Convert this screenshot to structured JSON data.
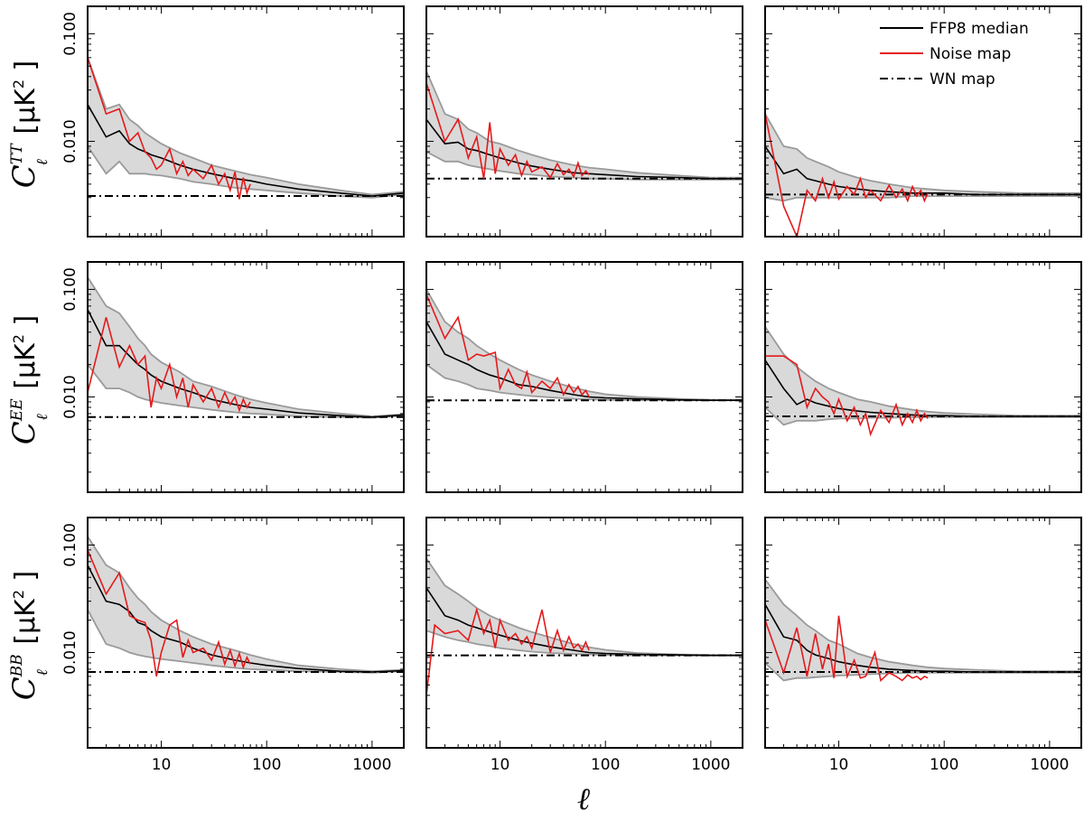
{
  "figure": {
    "xlabel": "ℓ",
    "y_unit": "μK",
    "y_unit_power": "2",
    "row_labels": [
      {
        "base": "C",
        "sup": "TT",
        "sub": "ℓ"
      },
      {
        "base": "C",
        "sup": "EE",
        "sub": "ℓ"
      },
      {
        "base": "C",
        "sup": "BB",
        "sub": "ℓ"
      }
    ],
    "x_tick_labels": [
      "10",
      "100",
      "1000"
    ],
    "y_tick_labels": [
      "0.010",
      "0.100"
    ],
    "legend": {
      "placement": "top-right",
      "entries": [
        {
          "label": "FFP8 median",
          "color": "#000000",
          "style": "solid"
        },
        {
          "label": "Noise map",
          "color": "#e41a1c",
          "style": "solid"
        },
        {
          "label": "WN map",
          "color": "#000000",
          "style": "dashdot"
        }
      ]
    },
    "colors": {
      "band_fill": "#d9d9d9",
      "band_edge": "#9a9a9a",
      "median": "#000000",
      "noise": "#e41a1c",
      "wn": "#000000"
    }
  },
  "chart_data": [
    {
      "type": "line",
      "row": 1,
      "col": 1,
      "xscale": "log",
      "yscale": "log",
      "xlim": [
        2,
        2000
      ],
      "ylim": [
        0.0013,
        0.18
      ],
      "wn_level": 0.0031,
      "x": [
        2,
        3,
        4,
        5,
        6,
        7,
        8,
        10,
        15,
        20,
        30,
        50,
        70,
        100,
        200,
        500,
        1000,
        2000
      ],
      "median": [
        0.022,
        0.011,
        0.0125,
        0.0095,
        0.0085,
        0.008,
        0.0075,
        0.007,
        0.006,
        0.0055,
        0.005,
        0.0045,
        0.0043,
        0.004,
        0.0036,
        0.0033,
        0.0031,
        0.0033
      ],
      "band_upper": [
        0.06,
        0.02,
        0.022,
        0.016,
        0.014,
        0.012,
        0.011,
        0.0095,
        0.0078,
        0.007,
        0.006,
        0.0053,
        0.0049,
        0.0046,
        0.004,
        0.0035,
        0.0032,
        0.0034
      ],
      "band_lower": [
        0.009,
        0.005,
        0.0065,
        0.005,
        0.005,
        0.005,
        0.0049,
        0.0048,
        0.0045,
        0.0042,
        0.004,
        0.0037,
        0.0036,
        0.0035,
        0.0033,
        0.0031,
        0.003,
        0.0032
      ],
      "noise_x": [
        2,
        3,
        4,
        5,
        6,
        7,
        8,
        9,
        10,
        12,
        14,
        16,
        18,
        20,
        25,
        30,
        35,
        40,
        45,
        50,
        55,
        60,
        65,
        70
      ],
      "noise": [
        0.06,
        0.018,
        0.02,
        0.01,
        0.012,
        0.008,
        0.007,
        0.0055,
        0.006,
        0.0085,
        0.005,
        0.0065,
        0.0048,
        0.0055,
        0.0045,
        0.006,
        0.004,
        0.005,
        0.0035,
        0.0052,
        0.0029,
        0.0046,
        0.0033,
        0.004
      ]
    },
    {
      "type": "line",
      "row": 1,
      "col": 2,
      "xscale": "log",
      "yscale": "log",
      "xlim": [
        2,
        2000
      ],
      "ylim": [
        0.0013,
        0.18
      ],
      "wn_level": 0.0045,
      "x": [
        2,
        3,
        4,
        5,
        6,
        8,
        10,
        15,
        20,
        30,
        50,
        70,
        100,
        200,
        500,
        1000,
        2000
      ],
      "median": [
        0.016,
        0.0095,
        0.0098,
        0.0085,
        0.0082,
        0.0075,
        0.007,
        0.0063,
        0.0059,
        0.0055,
        0.0051,
        0.005,
        0.0049,
        0.0047,
        0.0046,
        0.0045,
        0.0045
      ],
      "band_upper": [
        0.045,
        0.018,
        0.016,
        0.013,
        0.012,
        0.01,
        0.0095,
        0.0082,
        0.0075,
        0.0067,
        0.006,
        0.0057,
        0.0055,
        0.0051,
        0.0048,
        0.0046,
        0.0046
      ],
      "band_lower": [
        0.008,
        0.0065,
        0.0065,
        0.006,
        0.0058,
        0.0055,
        0.0053,
        0.005,
        0.0049,
        0.0047,
        0.0046,
        0.0045,
        0.0045,
        0.0044,
        0.0044,
        0.0044,
        0.0044
      ],
      "noise_x": [
        2,
        3,
        4,
        5,
        6,
        7,
        8,
        9,
        10,
        12,
        14,
        16,
        18,
        20,
        25,
        30,
        35,
        40,
        45,
        50,
        55,
        60,
        65,
        70
      ],
      "noise": [
        0.035,
        0.01,
        0.016,
        0.007,
        0.011,
        0.0045,
        0.015,
        0.005,
        0.0085,
        0.006,
        0.0075,
        0.0048,
        0.0065,
        0.0052,
        0.0058,
        0.0046,
        0.0062,
        0.0049,
        0.0055,
        0.0047,
        0.0063,
        0.0048,
        0.0053,
        0.0049
      ]
    },
    {
      "type": "line",
      "row": 1,
      "col": 3,
      "xscale": "log",
      "yscale": "log",
      "xlim": [
        2,
        2000
      ],
      "ylim": [
        0.0013,
        0.18
      ],
      "wn_level": 0.0032,
      "x": [
        2,
        3,
        4,
        5,
        6,
        8,
        10,
        15,
        20,
        30,
        50,
        70,
        100,
        200,
        500,
        1000,
        2000
      ],
      "median": [
        0.009,
        0.005,
        0.0055,
        0.0045,
        0.0043,
        0.004,
        0.0038,
        0.0036,
        0.0035,
        0.0034,
        0.0033,
        0.0033,
        0.0033,
        0.0032,
        0.0032,
        0.0032,
        0.0032
      ],
      "band_upper": [
        0.018,
        0.009,
        0.0085,
        0.007,
        0.0065,
        0.0058,
        0.0052,
        0.0046,
        0.0043,
        0.004,
        0.0037,
        0.0036,
        0.0035,
        0.0034,
        0.0033,
        0.0033,
        0.0033
      ],
      "band_lower": [
        0.003,
        0.0028,
        0.003,
        0.003,
        0.003,
        0.003,
        0.003,
        0.003,
        0.003,
        0.003,
        0.0031,
        0.0031,
        0.0031,
        0.0031,
        0.0031,
        0.0031,
        0.0031
      ],
      "noise_x": [
        2,
        3,
        4,
        5,
        6,
        7,
        8,
        9,
        10,
        12,
        14,
        16,
        18,
        20,
        25,
        30,
        35,
        40,
        45,
        50,
        55,
        60,
        65,
        70
      ],
      "noise": [
        0.018,
        0.0025,
        0.0013,
        0.0035,
        0.0028,
        0.0045,
        0.003,
        0.0042,
        0.0029,
        0.0038,
        0.0032,
        0.0045,
        0.003,
        0.0035,
        0.0028,
        0.0039,
        0.003,
        0.0036,
        0.0028,
        0.0038,
        0.0031,
        0.0035,
        0.0028,
        0.0033
      ]
    },
    {
      "type": "line",
      "row": 2,
      "col": 1,
      "xscale": "log",
      "yscale": "log",
      "xlim": [
        2,
        2000
      ],
      "ylim": [
        0.0013,
        0.18
      ],
      "wn_level": 0.0065,
      "x": [
        2,
        3,
        4,
        5,
        6,
        7,
        8,
        10,
        15,
        20,
        30,
        50,
        70,
        100,
        200,
        500,
        1000,
        2000
      ],
      "median": [
        0.065,
        0.03,
        0.03,
        0.024,
        0.02,
        0.018,
        0.016,
        0.014,
        0.012,
        0.011,
        0.0095,
        0.0085,
        0.008,
        0.0077,
        0.0071,
        0.0067,
        0.0065,
        0.0068
      ],
      "band_upper": [
        0.13,
        0.07,
        0.06,
        0.045,
        0.035,
        0.03,
        0.025,
        0.021,
        0.017,
        0.014,
        0.0125,
        0.0105,
        0.0095,
        0.0088,
        0.0077,
        0.007,
        0.0066,
        0.0069
      ],
      "band_lower": [
        0.02,
        0.012,
        0.012,
        0.011,
        0.01,
        0.0095,
        0.0092,
        0.0088,
        0.0083,
        0.008,
        0.0076,
        0.0072,
        0.007,
        0.0069,
        0.0066,
        0.0065,
        0.0064,
        0.0067
      ],
      "noise_x": [
        2,
        3,
        4,
        5,
        6,
        7,
        8,
        9,
        10,
        12,
        14,
        16,
        18,
        20,
        25,
        30,
        35,
        40,
        45,
        50,
        55,
        60,
        65,
        70
      ],
      "noise": [
        0.011,
        0.055,
        0.019,
        0.03,
        0.02,
        0.024,
        0.008,
        0.015,
        0.012,
        0.02,
        0.01,
        0.015,
        0.008,
        0.013,
        0.009,
        0.012,
        0.008,
        0.011,
        0.0085,
        0.01,
        0.0075,
        0.0095,
        0.008,
        0.009
      ]
    },
    {
      "type": "line",
      "row": 2,
      "col": 2,
      "xscale": "log",
      "yscale": "log",
      "xlim": [
        2,
        2000
      ],
      "ylim": [
        0.0013,
        0.18
      ],
      "wn_level": 0.0093,
      "x": [
        2,
        3,
        4,
        5,
        6,
        8,
        10,
        15,
        20,
        30,
        50,
        70,
        100,
        200,
        500,
        1000,
        2000
      ],
      "median": [
        0.05,
        0.025,
        0.022,
        0.02,
        0.018,
        0.016,
        0.015,
        0.013,
        0.0125,
        0.0115,
        0.0105,
        0.01,
        0.0098,
        0.0096,
        0.0094,
        0.0093,
        0.0093
      ],
      "band_upper": [
        0.1,
        0.05,
        0.04,
        0.035,
        0.03,
        0.025,
        0.022,
        0.018,
        0.016,
        0.014,
        0.0122,
        0.0113,
        0.0106,
        0.01,
        0.0096,
        0.0094,
        0.0094
      ],
      "band_lower": [
        0.02,
        0.015,
        0.014,
        0.013,
        0.012,
        0.0115,
        0.011,
        0.0105,
        0.0102,
        0.0099,
        0.0096,
        0.0095,
        0.0094,
        0.0093,
        0.0093,
        0.0093,
        0.0093
      ],
      "noise_x": [
        2,
        3,
        4,
        5,
        6,
        7,
        8,
        9,
        10,
        12,
        14,
        16,
        18,
        20,
        25,
        30,
        35,
        40,
        45,
        50,
        55,
        60,
        65,
        70
      ],
      "noise": [
        0.09,
        0.035,
        0.055,
        0.022,
        0.025,
        0.024,
        0.025,
        0.026,
        0.012,
        0.018,
        0.013,
        0.012,
        0.017,
        0.011,
        0.014,
        0.012,
        0.015,
        0.0105,
        0.013,
        0.011,
        0.0125,
        0.0105,
        0.0115,
        0.01
      ]
    },
    {
      "type": "line",
      "row": 2,
      "col": 3,
      "xscale": "log",
      "yscale": "log",
      "xlim": [
        2,
        2000
      ],
      "ylim": [
        0.0013,
        0.18
      ],
      "wn_level": 0.0066,
      "x": [
        2,
        3,
        4,
        5,
        6,
        8,
        10,
        15,
        20,
        30,
        50,
        70,
        100,
        200,
        500,
        1000,
        2000
      ],
      "median": [
        0.022,
        0.012,
        0.0085,
        0.0095,
        0.0088,
        0.0082,
        0.0078,
        0.0074,
        0.0072,
        0.007,
        0.0068,
        0.0067,
        0.0067,
        0.0066,
        0.0066,
        0.0066,
        0.0066
      ],
      "band_upper": [
        0.045,
        0.025,
        0.019,
        0.016,
        0.014,
        0.012,
        0.011,
        0.0095,
        0.009,
        0.0082,
        0.0076,
        0.0073,
        0.0071,
        0.0069,
        0.0067,
        0.0067,
        0.0067
      ],
      "band_lower": [
        0.008,
        0.0055,
        0.006,
        0.006,
        0.006,
        0.0062,
        0.0063,
        0.0063,
        0.0064,
        0.0064,
        0.0065,
        0.0065,
        0.0065,
        0.0065,
        0.0065,
        0.0065,
        0.0065
      ],
      "noise_x": [
        2,
        3,
        4,
        5,
        6,
        7,
        8,
        9,
        10,
        12,
        14,
        16,
        18,
        20,
        25,
        30,
        35,
        40,
        45,
        50,
        55,
        60,
        65,
        70
      ],
      "noise": [
        0.024,
        0.024,
        0.02,
        0.008,
        0.012,
        0.01,
        0.009,
        0.007,
        0.0095,
        0.006,
        0.008,
        0.0055,
        0.007,
        0.0045,
        0.0075,
        0.0058,
        0.0085,
        0.0055,
        0.007,
        0.0058,
        0.0075,
        0.006,
        0.007,
        0.0063
      ]
    },
    {
      "type": "line",
      "row": 3,
      "col": 1,
      "xscale": "log",
      "yscale": "log",
      "xlim": [
        2,
        2000
      ],
      "ylim": [
        0.0013,
        0.18
      ],
      "wn_level": 0.0066,
      "x": [
        2,
        3,
        4,
        5,
        6,
        7,
        8,
        10,
        15,
        20,
        30,
        50,
        70,
        100,
        200,
        500,
        1000,
        2000
      ],
      "median": [
        0.065,
        0.03,
        0.028,
        0.024,
        0.019,
        0.018,
        0.016,
        0.014,
        0.0125,
        0.011,
        0.0095,
        0.0085,
        0.008,
        0.0076,
        0.0071,
        0.0067,
        0.0066,
        0.0068
      ],
      "band_upper": [
        0.12,
        0.065,
        0.055,
        0.04,
        0.032,
        0.028,
        0.024,
        0.02,
        0.016,
        0.014,
        0.012,
        0.0105,
        0.0095,
        0.0087,
        0.0076,
        0.007,
        0.0067,
        0.0069
      ],
      "band_lower": [
        0.025,
        0.012,
        0.011,
        0.01,
        0.0095,
        0.0092,
        0.009,
        0.0087,
        0.0083,
        0.008,
        0.0076,
        0.0072,
        0.007,
        0.0069,
        0.0067,
        0.0066,
        0.0065,
        0.0067
      ],
      "noise_x": [
        2,
        3,
        4,
        5,
        6,
        7,
        8,
        9,
        10,
        12,
        14,
        16,
        18,
        20,
        25,
        30,
        35,
        40,
        45,
        50,
        55,
        60,
        65,
        70
      ],
      "noise": [
        0.09,
        0.035,
        0.055,
        0.022,
        0.02,
        0.019,
        0.013,
        0.006,
        0.01,
        0.018,
        0.02,
        0.009,
        0.013,
        0.01,
        0.011,
        0.0085,
        0.0125,
        0.0078,
        0.0105,
        0.0075,
        0.0098,
        0.0073,
        0.009,
        0.0078
      ]
    },
    {
      "type": "line",
      "row": 3,
      "col": 2,
      "xscale": "log",
      "yscale": "log",
      "xlim": [
        2,
        2000
      ],
      "ylim": [
        0.0013,
        0.18
      ],
      "wn_level": 0.0094,
      "x": [
        2,
        3,
        4,
        5,
        6,
        8,
        10,
        15,
        20,
        30,
        50,
        70,
        100,
        200,
        500,
        1000,
        2000
      ],
      "median": [
        0.04,
        0.022,
        0.02,
        0.018,
        0.017,
        0.0155,
        0.0145,
        0.013,
        0.0122,
        0.0113,
        0.0105,
        0.01,
        0.0098,
        0.0096,
        0.0095,
        0.0094,
        0.0094
      ],
      "band_upper": [
        0.075,
        0.042,
        0.035,
        0.03,
        0.026,
        0.022,
        0.02,
        0.017,
        0.0155,
        0.0138,
        0.012,
        0.0112,
        0.0106,
        0.0099,
        0.0096,
        0.0095,
        0.0095
      ],
      "band_lower": [
        0.016,
        0.014,
        0.013,
        0.0125,
        0.012,
        0.0115,
        0.011,
        0.0105,
        0.0102,
        0.0099,
        0.0097,
        0.0096,
        0.0095,
        0.0094,
        0.0094,
        0.0094,
        0.0094
      ],
      "noise_x": [
        2,
        2.4,
        3,
        4,
        5,
        6,
        7,
        8,
        9,
        10,
        12,
        14,
        16,
        18,
        20,
        25,
        30,
        35,
        40,
        45,
        50,
        55,
        60,
        65,
        70
      ],
      "noise": [
        0.004,
        0.018,
        0.015,
        0.016,
        0.013,
        0.025,
        0.015,
        0.02,
        0.011,
        0.02,
        0.013,
        0.015,
        0.012,
        0.014,
        0.011,
        0.025,
        0.01,
        0.016,
        0.0105,
        0.014,
        0.011,
        0.012,
        0.0105,
        0.0125,
        0.0105
      ]
    },
    {
      "type": "line",
      "row": 3,
      "col": 3,
      "xscale": "log",
      "yscale": "log",
      "xlim": [
        2,
        2000
      ],
      "ylim": [
        0.0013,
        0.18
      ],
      "wn_level": 0.0066,
      "x": [
        2,
        3,
        4,
        5,
        6,
        8,
        10,
        15,
        20,
        30,
        50,
        70,
        100,
        200,
        500,
        1000,
        2000
      ],
      "median": [
        0.028,
        0.014,
        0.013,
        0.0105,
        0.0095,
        0.0088,
        0.0082,
        0.0076,
        0.0073,
        0.007,
        0.0068,
        0.0067,
        0.0067,
        0.0066,
        0.0066,
        0.0066,
        0.0066
      ],
      "band_upper": [
        0.048,
        0.028,
        0.022,
        0.018,
        0.016,
        0.013,
        0.012,
        0.0098,
        0.009,
        0.0082,
        0.0076,
        0.0073,
        0.0071,
        0.0069,
        0.0067,
        0.0067,
        0.0067
      ],
      "band_lower": [
        0.008,
        0.0055,
        0.0058,
        0.0058,
        0.0059,
        0.006,
        0.0061,
        0.0062,
        0.0063,
        0.0064,
        0.0065,
        0.0065,
        0.0065,
        0.0065,
        0.0065,
        0.0065,
        0.0065
      ],
      "noise_x": [
        2,
        3,
        4,
        5,
        6,
        7,
        8,
        9,
        10,
        12,
        14,
        16,
        18,
        20,
        22,
        25,
        30,
        35,
        40,
        45,
        50,
        55,
        60,
        65,
        70
      ],
      "noise": [
        0.02,
        0.0065,
        0.017,
        0.006,
        0.015,
        0.007,
        0.012,
        0.0058,
        0.022,
        0.006,
        0.0085,
        0.0058,
        0.006,
        0.0078,
        0.01,
        0.0055,
        0.0065,
        0.006,
        0.0055,
        0.0062,
        0.0058,
        0.006,
        0.0056,
        0.006,
        0.0058
      ]
    }
  ]
}
